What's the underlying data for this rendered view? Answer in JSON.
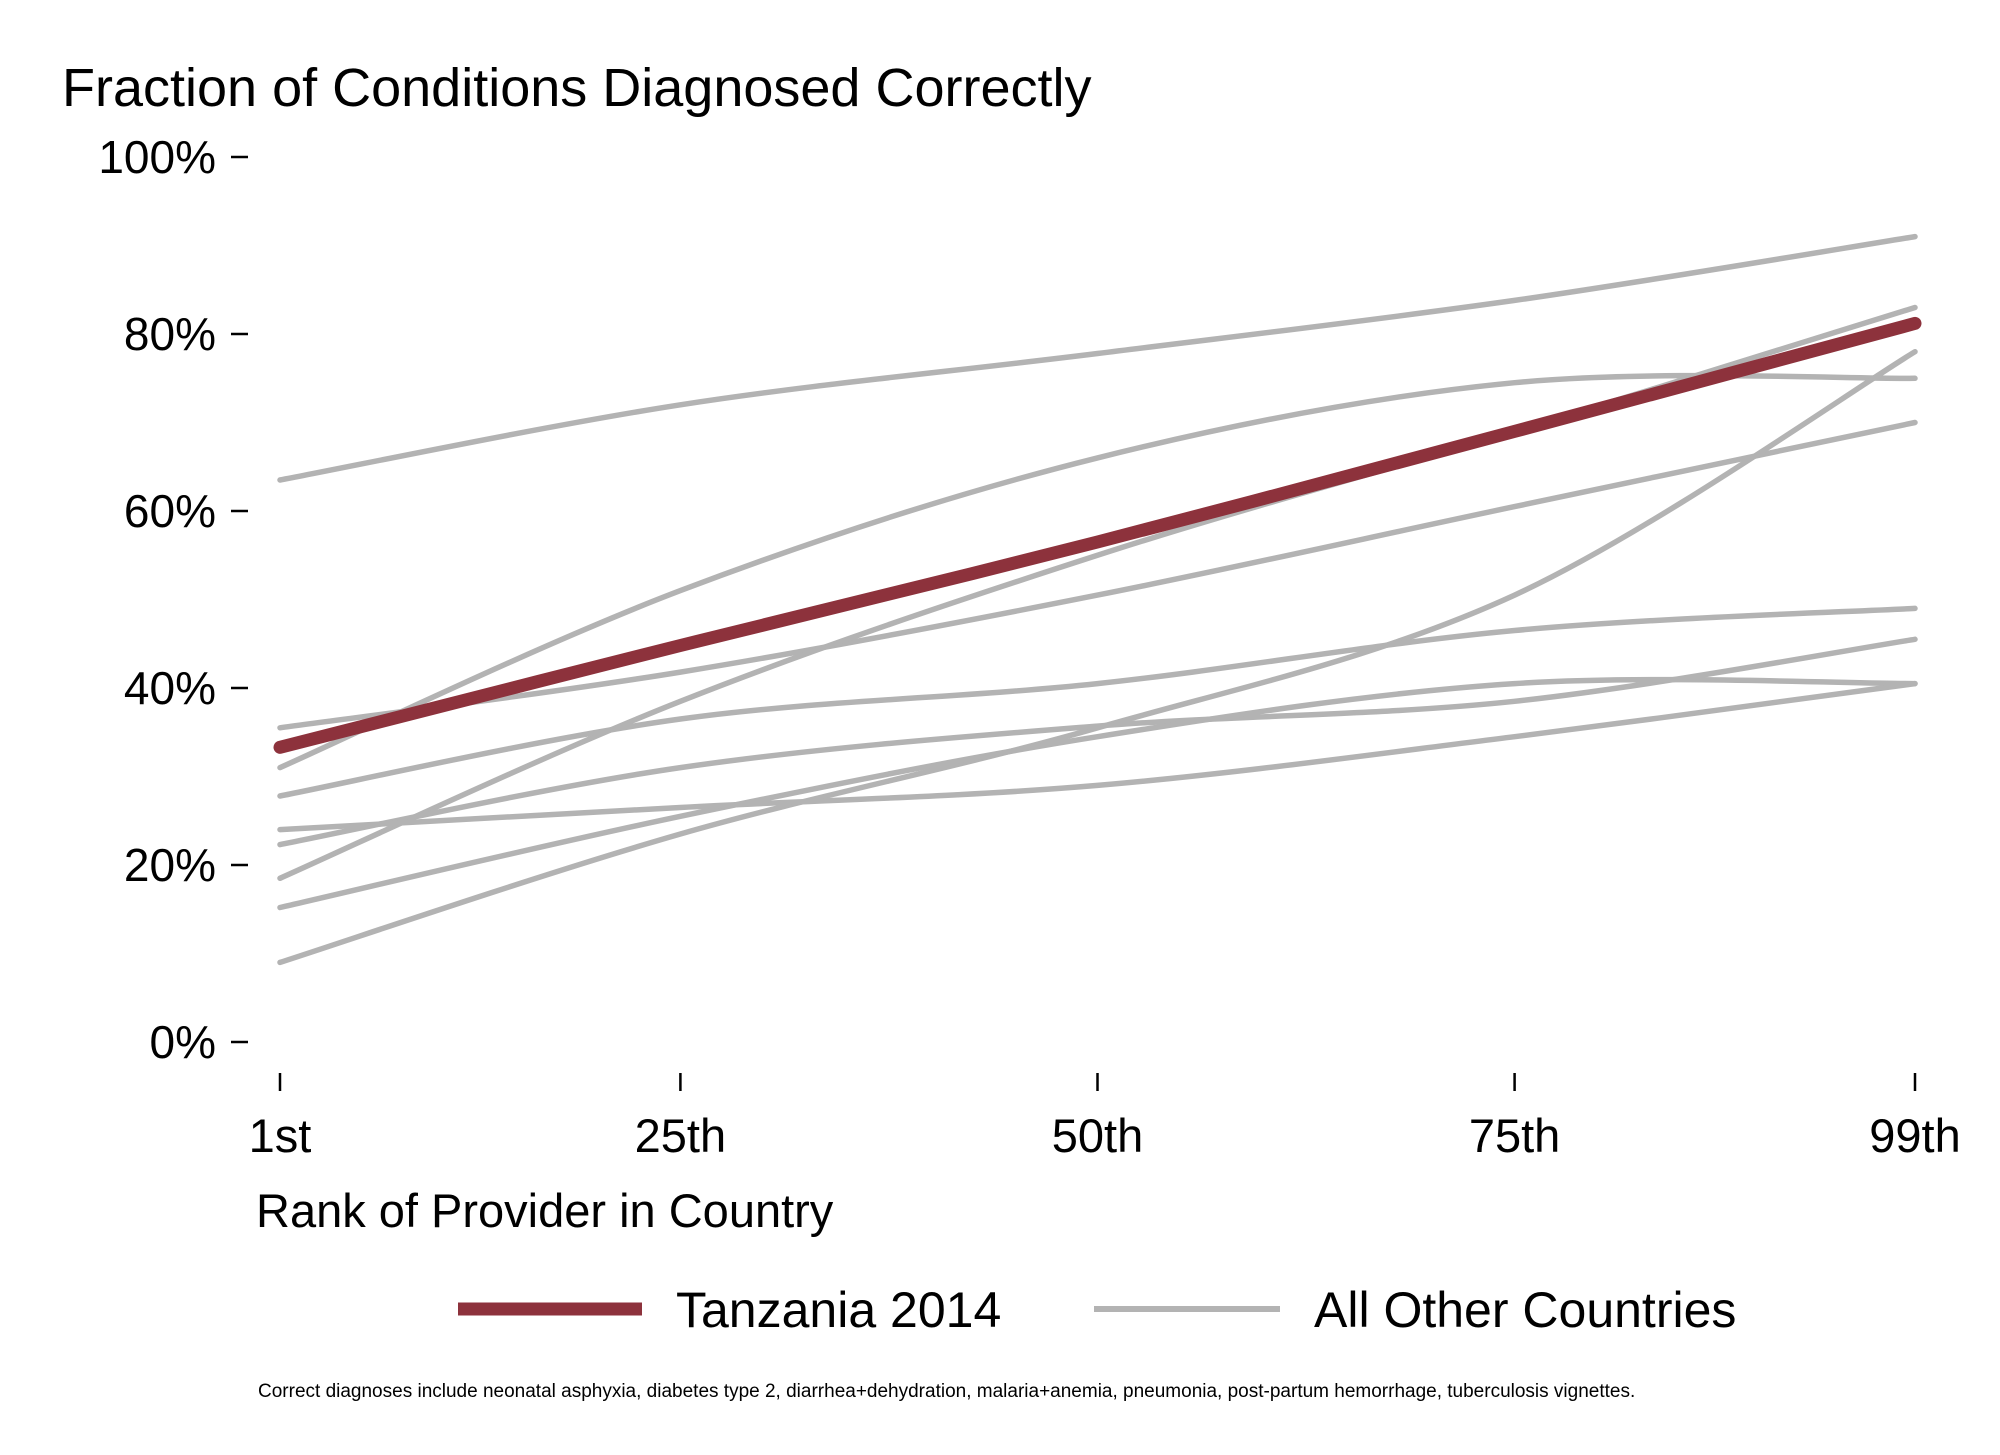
{
  "chart_data": {
    "type": "line",
    "title": "Fraction of Conditions Diagnosed Correctly",
    "xlabel": "Rank of Provider in Country",
    "ylabel": "",
    "x_ticks": [
      {
        "value": 1,
        "label": "1st"
      },
      {
        "value": 25,
        "label": "25th"
      },
      {
        "value": 50,
        "label": "50th"
      },
      {
        "value": 75,
        "label": "75th"
      },
      {
        "value": 99,
        "label": "99th"
      }
    ],
    "xlim": [
      1,
      99
    ],
    "y_ticks": [
      {
        "value": 0,
        "label": "0%"
      },
      {
        "value": 20,
        "label": "20%"
      },
      {
        "value": 40,
        "label": "40%"
      },
      {
        "value": 60,
        "label": "60%"
      },
      {
        "value": 80,
        "label": "80%"
      },
      {
        "value": 100,
        "label": "100%"
      }
    ],
    "ylim": [
      0,
      100
    ],
    "grid": false,
    "legend_position": "bottom",
    "legend": [
      {
        "label": "Tanzania 2014",
        "color": "#8d323c"
      },
      {
        "label": "All Other Countries",
        "color": "#b3b3b3"
      }
    ],
    "x": [
      1,
      25,
      50,
      75,
      99
    ],
    "highlight_series": {
      "name": "Tanzania 2014",
      "color": "#8d323c",
      "values": [
        33.3,
        44.8,
        56.5,
        69.0,
        81.2
      ]
    },
    "other_series": [
      {
        "values": [
          63.5,
          72.0,
          77.8,
          83.8,
          91.0
        ]
      },
      {
        "values": [
          35.5,
          41.8,
          50.5,
          60.5,
          70.0
        ]
      },
      {
        "values": [
          31.0,
          51.0,
          66.0,
          74.5,
          75.0
        ]
      },
      {
        "values": [
          18.5,
          38.5,
          55.0,
          69.0,
          83.0
        ]
      },
      {
        "values": [
          9.0,
          23.5,
          35.5,
          50.5,
          78.0
        ]
      },
      {
        "values": [
          27.8,
          36.5,
          40.5,
          46.5,
          49.0
        ]
      },
      {
        "values": [
          22.3,
          31.0,
          35.7,
          38.5,
          45.5
        ]
      },
      {
        "values": [
          15.2,
          25.5,
          34.5,
          40.5,
          40.5
        ]
      },
      {
        "values": [
          24.0,
          26.5,
          29.0,
          34.5,
          40.5
        ]
      }
    ],
    "footnote": "Correct diagnoses include neonatal asphyxia, diabetes type 2, diarrhea+dehydration, malaria+anemia, pneumonia, post-partum hemorrhage, tuberculosis vignettes."
  }
}
